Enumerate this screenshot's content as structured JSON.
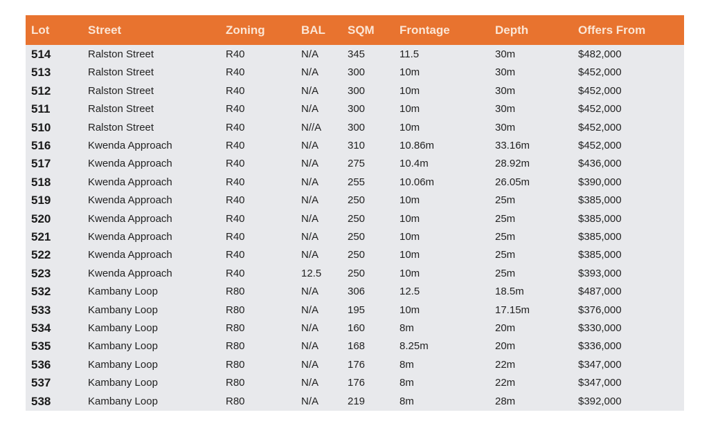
{
  "table": {
    "colors": {
      "header_bg": "#e8732f",
      "header_text": "#fbe6d6",
      "body_bg": "#e8e9ec"
    },
    "headers": [
      "Lot",
      "Street",
      "Zoning",
      "BAL",
      "SQM",
      "Frontage",
      "Depth",
      "Offers From"
    ],
    "rows": [
      [
        "514",
        "Ralston Street",
        "R40",
        "N/A",
        "345",
        "11.5",
        "30m",
        "$482,000"
      ],
      [
        "513",
        "Ralston Street",
        "R40",
        "N/A",
        "300",
        "10m",
        "30m",
        "$452,000"
      ],
      [
        "512",
        "Ralston Street",
        "R40",
        "N/A",
        "300",
        "10m",
        "30m",
        "$452,000"
      ],
      [
        "511",
        "Ralston Street",
        "R40",
        "N/A",
        "300",
        "10m",
        "30m",
        "$452,000"
      ],
      [
        "510",
        "Ralston Street",
        "R40",
        "N//A",
        "300",
        "10m",
        "30m",
        "$452,000"
      ],
      [
        "516",
        "Kwenda Approach",
        "R40",
        "N/A",
        "310",
        "10.86m",
        "33.16m",
        "$452,000"
      ],
      [
        "517",
        "Kwenda Approach",
        "R40",
        "N/A",
        "275",
        "10.4m",
        "28.92m",
        "$436,000"
      ],
      [
        "518",
        "Kwenda Approach",
        "R40",
        "N/A",
        "255",
        "10.06m",
        "26.05m",
        "$390,000"
      ],
      [
        "519",
        "Kwenda Approach",
        "R40",
        "N/A",
        "250",
        "10m",
        "25m",
        "$385,000"
      ],
      [
        "520",
        "Kwenda Approach",
        "R40",
        "N/A",
        "250",
        "10m",
        "25m",
        "$385,000"
      ],
      [
        "521",
        "Kwenda Approach",
        "R40",
        "N/A",
        "250",
        "10m",
        "25m",
        "$385,000"
      ],
      [
        "522",
        "Kwenda Approach",
        "R40",
        "N/A",
        "250",
        "10m",
        "25m",
        "$385,000"
      ],
      [
        "523",
        "Kwenda Approach",
        "R40",
        "12.5",
        "250",
        "10m",
        "25m",
        "$393,000"
      ],
      [
        "532",
        "Kambany Loop",
        "R80",
        "N/A",
        "306",
        "12.5",
        "18.5m",
        "$487,000"
      ],
      [
        "533",
        "Kambany Loop",
        "R80",
        "N/A",
        "195",
        "10m",
        "17.15m",
        "$376,000"
      ],
      [
        "534",
        "Kambany Loop",
        "R80",
        "N/A",
        "160",
        "8m",
        "20m",
        "$330,000"
      ],
      [
        "535",
        "Kambany Loop",
        "R80",
        "N/A",
        "168",
        "8.25m",
        "20m",
        "$336,000"
      ],
      [
        "536",
        "Kambany Loop",
        "R80",
        "N/A",
        "176",
        "8m",
        "22m",
        "$347,000"
      ],
      [
        "537",
        "Kambany Loop",
        "R80",
        "N/A",
        "176",
        "8m",
        "22m",
        "$347,000"
      ],
      [
        "538",
        "Kambany Loop",
        "R80",
        "N/A",
        "219",
        "8m",
        "28m",
        "$392,000"
      ]
    ]
  }
}
